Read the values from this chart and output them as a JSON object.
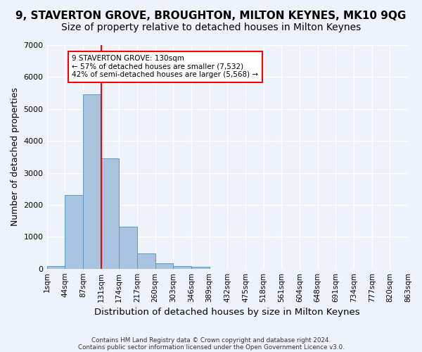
{
  "title": "9, STAVERTON GROVE, BROUGHTON, MILTON KEYNES, MK10 9QG",
  "subtitle": "Size of property relative to detached houses in Milton Keynes",
  "xlabel": "Distribution of detached houses by size in Milton Keynes",
  "ylabel": "Number of detached properties",
  "footer1": "Contains HM Land Registry data © Crown copyright and database right 2024.",
  "footer2": "Contains public sector information licensed under the Open Government Licence v3.0.",
  "bar_values": [
    80,
    2300,
    5450,
    3450,
    1320,
    480,
    160,
    80,
    50,
    0,
    0,
    0,
    0,
    0,
    0,
    0,
    0,
    0,
    0,
    0
  ],
  "bar_color": "#aac4e0",
  "bar_edge_color": "#5599cc",
  "categories": [
    "1sqm",
    "44sqm",
    "87sqm",
    "131sqm",
    "174sqm",
    "217sqm",
    "260sqm",
    "303sqm",
    "346sqm",
    "389sqm",
    "432sqm",
    "475sqm",
    "518sqm",
    "561sqm",
    "604sqm",
    "648sqm",
    "691sqm",
    "734sqm",
    "777sqm",
    "820sqm",
    "863sqm"
  ],
  "ylim": [
    0,
    7000
  ],
  "yticks": [
    0,
    1000,
    2000,
    3000,
    4000,
    5000,
    6000,
    7000
  ],
  "vline_x": 3,
  "annotation_title": "9 STAVERTON GROVE: 130sqm",
  "annotation_line1": "← 57% of detached houses are smaller (7,532)",
  "annotation_line2": "42% of semi-detached houses are larger (5,568) →",
  "background_color": "#eef2fb",
  "grid_color": "#ffffff",
  "title_fontsize": 11,
  "subtitle_fontsize": 10,
  "axis_label_fontsize": 9,
  "tick_fontsize": 7.5
}
